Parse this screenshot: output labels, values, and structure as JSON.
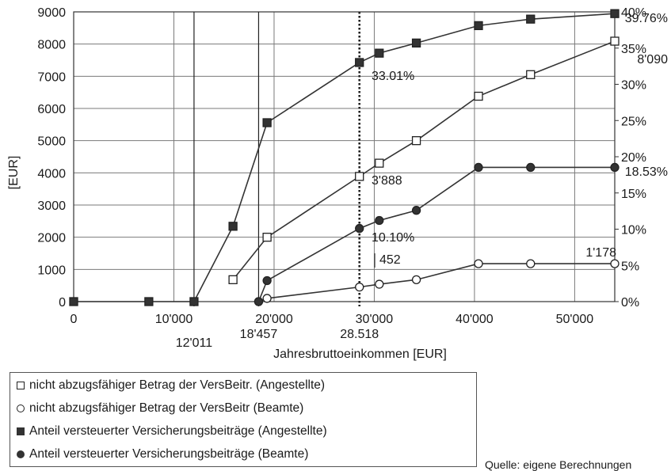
{
  "chart_data": {
    "type": "line",
    "xlabel": "Jahresbruttoeinkommen [EUR]",
    "ylabel": "[EUR]",
    "xlim": [
      0,
      54000
    ],
    "ylim": [
      0,
      9000
    ],
    "y2lim": [
      0,
      40
    ],
    "x_ticks": [
      0,
      10000,
      20000,
      30000,
      40000,
      50000
    ],
    "x_tick_labels": [
      "0",
      "10'000",
      "20'000",
      "30'000",
      "40'000",
      "50'000"
    ],
    "y_ticks": [
      0,
      1000,
      2000,
      3000,
      4000,
      5000,
      6000,
      7000,
      8000,
      9000
    ],
    "y_tick_labels": [
      "0",
      "1000",
      "2000",
      "3000",
      "4000",
      "5000",
      "6000",
      "7000",
      "8000",
      "9000"
    ],
    "y2_ticks": [
      0,
      5,
      10,
      15,
      20,
      25,
      30,
      35,
      40
    ],
    "y2_tick_labels": [
      "0%",
      "5%",
      "10%",
      "15%",
      "20%",
      "25%",
      "30%",
      "35%",
      "40%"
    ],
    "grid": true,
    "marker_lines": [
      {
        "x": 12011,
        "label": "12'011"
      },
      {
        "x": 18457,
        "label": "18'457"
      },
      {
        "x": 28518,
        "label": "28.518",
        "style": "dotted"
      }
    ],
    "series": [
      {
        "name": "nicht abzugsfähiger Betrag der VersBeitr. (Angestellte)",
        "axis": "left",
        "marker": "square-open",
        "x": [
          15900,
          19300,
          28518,
          30500,
          34200,
          40400,
          45600,
          54000
        ],
        "y": [
          680,
          2000,
          3888,
          4300,
          5000,
          6380,
          7050,
          8090
        ]
      },
      {
        "name": "nicht abzugsfähiger Betrag der VersBeitr (Beamte)",
        "axis": "left",
        "marker": "circle-open",
        "x": [
          18457,
          19300,
          28518,
          30500,
          34200,
          40400,
          45600,
          54000
        ],
        "y": [
          0,
          100,
          452,
          540,
          680,
          1178,
          1178,
          1178
        ]
      },
      {
        "name": "Anteil versteuerter Versicherungsbeiträge (Angestellte)",
        "axis": "right",
        "marker": "square-filled",
        "x": [
          0,
          7500,
          12011,
          15900,
          19300,
          28518,
          30500,
          34200,
          40400,
          45600,
          54000
        ],
        "y": [
          0,
          0,
          0,
          10.4,
          24.7,
          33.01,
          34.3,
          35.7,
          38.1,
          39.0,
          39.76
        ]
      },
      {
        "name": "Anteil versteuerter Versicherungsbeiträge (Beamte)",
        "axis": "right",
        "marker": "circle-filled",
        "x": [
          18457,
          19300,
          28518,
          30500,
          34200,
          40400,
          45600,
          54000
        ],
        "y": [
          0,
          2.9,
          10.1,
          11.2,
          12.6,
          18.53,
          18.53,
          18.53
        ]
      }
    ],
    "annotations": [
      {
        "text": "39.76%"
      },
      {
        "text": "8'090"
      },
      {
        "text": "33.01%"
      },
      {
        "text": "3'888"
      },
      {
        "text": "18.53%"
      },
      {
        "text": "10.10%"
      },
      {
        "text": "452"
      },
      {
        "text": "1'178"
      }
    ]
  },
  "legend": {
    "items": [
      {
        "label": "nicht abzugsfähiger Betrag der VersBeitr. (Angestellte)",
        "icon": "square-open"
      },
      {
        "label": "nicht abzugsfähiger Betrag der VersBeitr (Beamte)",
        "icon": "circle-open"
      },
      {
        "label": "Anteil versteuerter Versicherungsbeiträge (Angestellte)",
        "icon": "square-filled"
      },
      {
        "label": "Anteil versteuerter Versicherungsbeiträge (Beamte)",
        "icon": "circle-filled"
      }
    ]
  },
  "source_note": "Quelle: eigene Berechnungen"
}
